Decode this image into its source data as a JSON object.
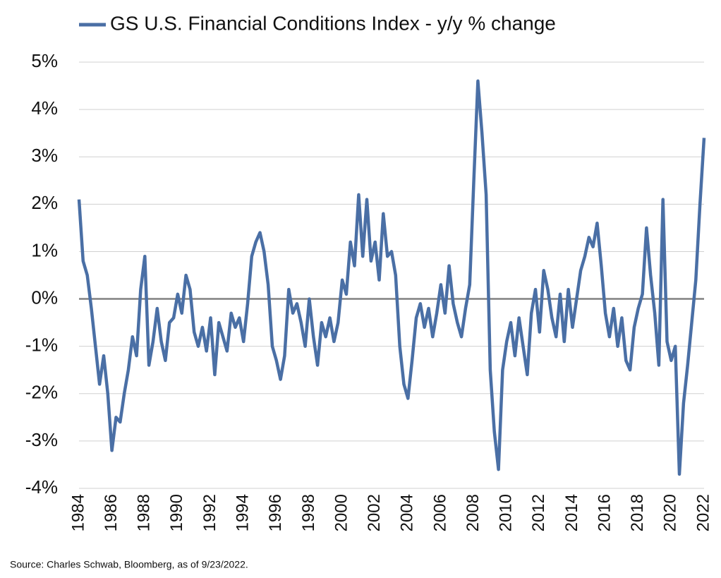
{
  "chart_data": {
    "type": "line",
    "source": "Source: Charles Schwab, Bloomberg, as of 9/23/2022.",
    "x": [
      1984,
      1984.25,
      1984.5,
      1984.75,
      1985,
      1985.25,
      1985.5,
      1985.75,
      1986,
      1986.25,
      1986.5,
      1986.75,
      1987,
      1987.25,
      1987.5,
      1987.75,
      1988,
      1988.25,
      1988.5,
      1988.75,
      1989,
      1989.25,
      1989.5,
      1989.75,
      1990,
      1990.25,
      1990.5,
      1990.75,
      1991,
      1991.25,
      1991.5,
      1991.75,
      1992,
      1992.25,
      1992.5,
      1992.75,
      1993,
      1993.25,
      1993.5,
      1993.75,
      1994,
      1994.25,
      1994.5,
      1994.75,
      1995,
      1995.25,
      1995.5,
      1995.75,
      1996,
      1996.25,
      1996.5,
      1996.75,
      1997,
      1997.25,
      1997.5,
      1997.75,
      1998,
      1998.25,
      1998.5,
      1998.75,
      1999,
      1999.25,
      1999.5,
      1999.75,
      2000,
      2000.25,
      2000.5,
      2000.75,
      2001,
      2001.25,
      2001.5,
      2001.75,
      2002,
      2002.25,
      2002.5,
      2002.75,
      2003,
      2003.25,
      2003.5,
      2003.75,
      2004,
      2004.25,
      2004.5,
      2004.75,
      2005,
      2005.25,
      2005.5,
      2005.75,
      2006,
      2006.25,
      2006.5,
      2006.75,
      2007,
      2007.25,
      2007.5,
      2007.75,
      2008,
      2008.25,
      2008.5,
      2008.75,
      2009,
      2009.25,
      2009.5,
      2009.75,
      2010,
      2010.25,
      2010.5,
      2010.75,
      2011,
      2011.25,
      2011.5,
      2011.75,
      2012,
      2012.25,
      2012.5,
      2012.75,
      2013,
      2013.25,
      2013.5,
      2013.75,
      2014,
      2014.25,
      2014.5,
      2014.75,
      2015,
      2015.25,
      2015.5,
      2015.75,
      2016,
      2016.25,
      2016.5,
      2016.75,
      2017,
      2017.25,
      2017.5,
      2017.75,
      2018,
      2018.25,
      2018.5,
      2018.75,
      2019,
      2019.25,
      2019.5,
      2019.75,
      2020,
      2020.25,
      2020.5,
      2020.75,
      2021,
      2021.25,
      2021.5,
      2021.75,
      2022
    ],
    "series": [
      {
        "name": "GS U.S. Financial Conditions Index - y/y % change",
        "color": "#4a6fa5",
        "values": [
          2.1,
          0.8,
          0.5,
          -0.2,
          -1.0,
          -1.8,
          -1.2,
          -2.0,
          -3.2,
          -2.5,
          -2.6,
          -2.0,
          -1.5,
          -0.8,
          -1.2,
          0.2,
          0.9,
          -1.4,
          -0.9,
          -0.2,
          -0.9,
          -1.3,
          -0.5,
          -0.4,
          0.1,
          -0.3,
          0.5,
          0.2,
          -0.7,
          -1.0,
          -0.6,
          -1.1,
          -0.4,
          -1.6,
          -0.5,
          -0.8,
          -1.1,
          -0.3,
          -0.6,
          -0.4,
          -0.9,
          -0.1,
          0.9,
          1.2,
          1.4,
          1.0,
          0.3,
          -1.0,
          -1.3,
          -1.7,
          -1.2,
          0.2,
          -0.3,
          -0.1,
          -0.5,
          -1.0,
          0.0,
          -0.8,
          -1.4,
          -0.5,
          -0.8,
          -0.4,
          -0.9,
          -0.5,
          0.4,
          0.1,
          1.2,
          0.7,
          2.2,
          0.9,
          2.1,
          0.8,
          1.2,
          0.4,
          1.8,
          0.9,
          1.0,
          0.5,
          -1.0,
          -1.8,
          -2.1,
          -1.3,
          -0.4,
          -0.1,
          -0.6,
          -0.2,
          -0.8,
          -0.3,
          0.3,
          -0.3,
          0.7,
          -0.1,
          -0.5,
          -0.8,
          -0.2,
          0.3,
          2.5,
          4.6,
          3.5,
          2.2,
          -1.5,
          -2.8,
          -3.6,
          -1.5,
          -0.9,
          -0.5,
          -1.2,
          -0.4,
          -1.0,
          -1.6,
          -0.3,
          0.2,
          -0.7,
          0.6,
          0.2,
          -0.4,
          -0.8,
          0.1,
          -0.9,
          0.2,
          -0.6,
          0.0,
          0.6,
          0.9,
          1.3,
          1.1,
          1.6,
          0.7,
          -0.3,
          -0.8,
          -0.2,
          -1.0,
          -0.4,
          -1.3,
          -1.5,
          -0.6,
          -0.2,
          0.1,
          1.5,
          0.5,
          -0.3,
          -1.4,
          2.1,
          -0.9,
          -1.3,
          -1.0,
          -3.7,
          -2.2,
          -1.4,
          -0.5,
          0.4,
          2.0,
          3.4
        ]
      }
    ],
    "xlim": [
      1984,
      2022
    ],
    "xticks": [
      1984,
      1986,
      1988,
      1990,
      1992,
      1994,
      1996,
      1998,
      2000,
      2002,
      2004,
      2006,
      2008,
      2010,
      2012,
      2014,
      2016,
      2018,
      2020,
      2022
    ],
    "ylim": [
      -4,
      5
    ],
    "yticks": [
      {
        "value": -4,
        "label": "-4%"
      },
      {
        "value": -3,
        "label": "-3%"
      },
      {
        "value": -2,
        "label": "-2%"
      },
      {
        "value": -1,
        "label": "-1%"
      },
      {
        "value": 0,
        "label": "0%"
      },
      {
        "value": 1,
        "label": "1%"
      },
      {
        "value": 2,
        "label": "2%"
      },
      {
        "value": 3,
        "label": "3%"
      },
      {
        "value": 4,
        "label": "4%"
      },
      {
        "value": 5,
        "label": "5%"
      }
    ],
    "grid": true
  }
}
